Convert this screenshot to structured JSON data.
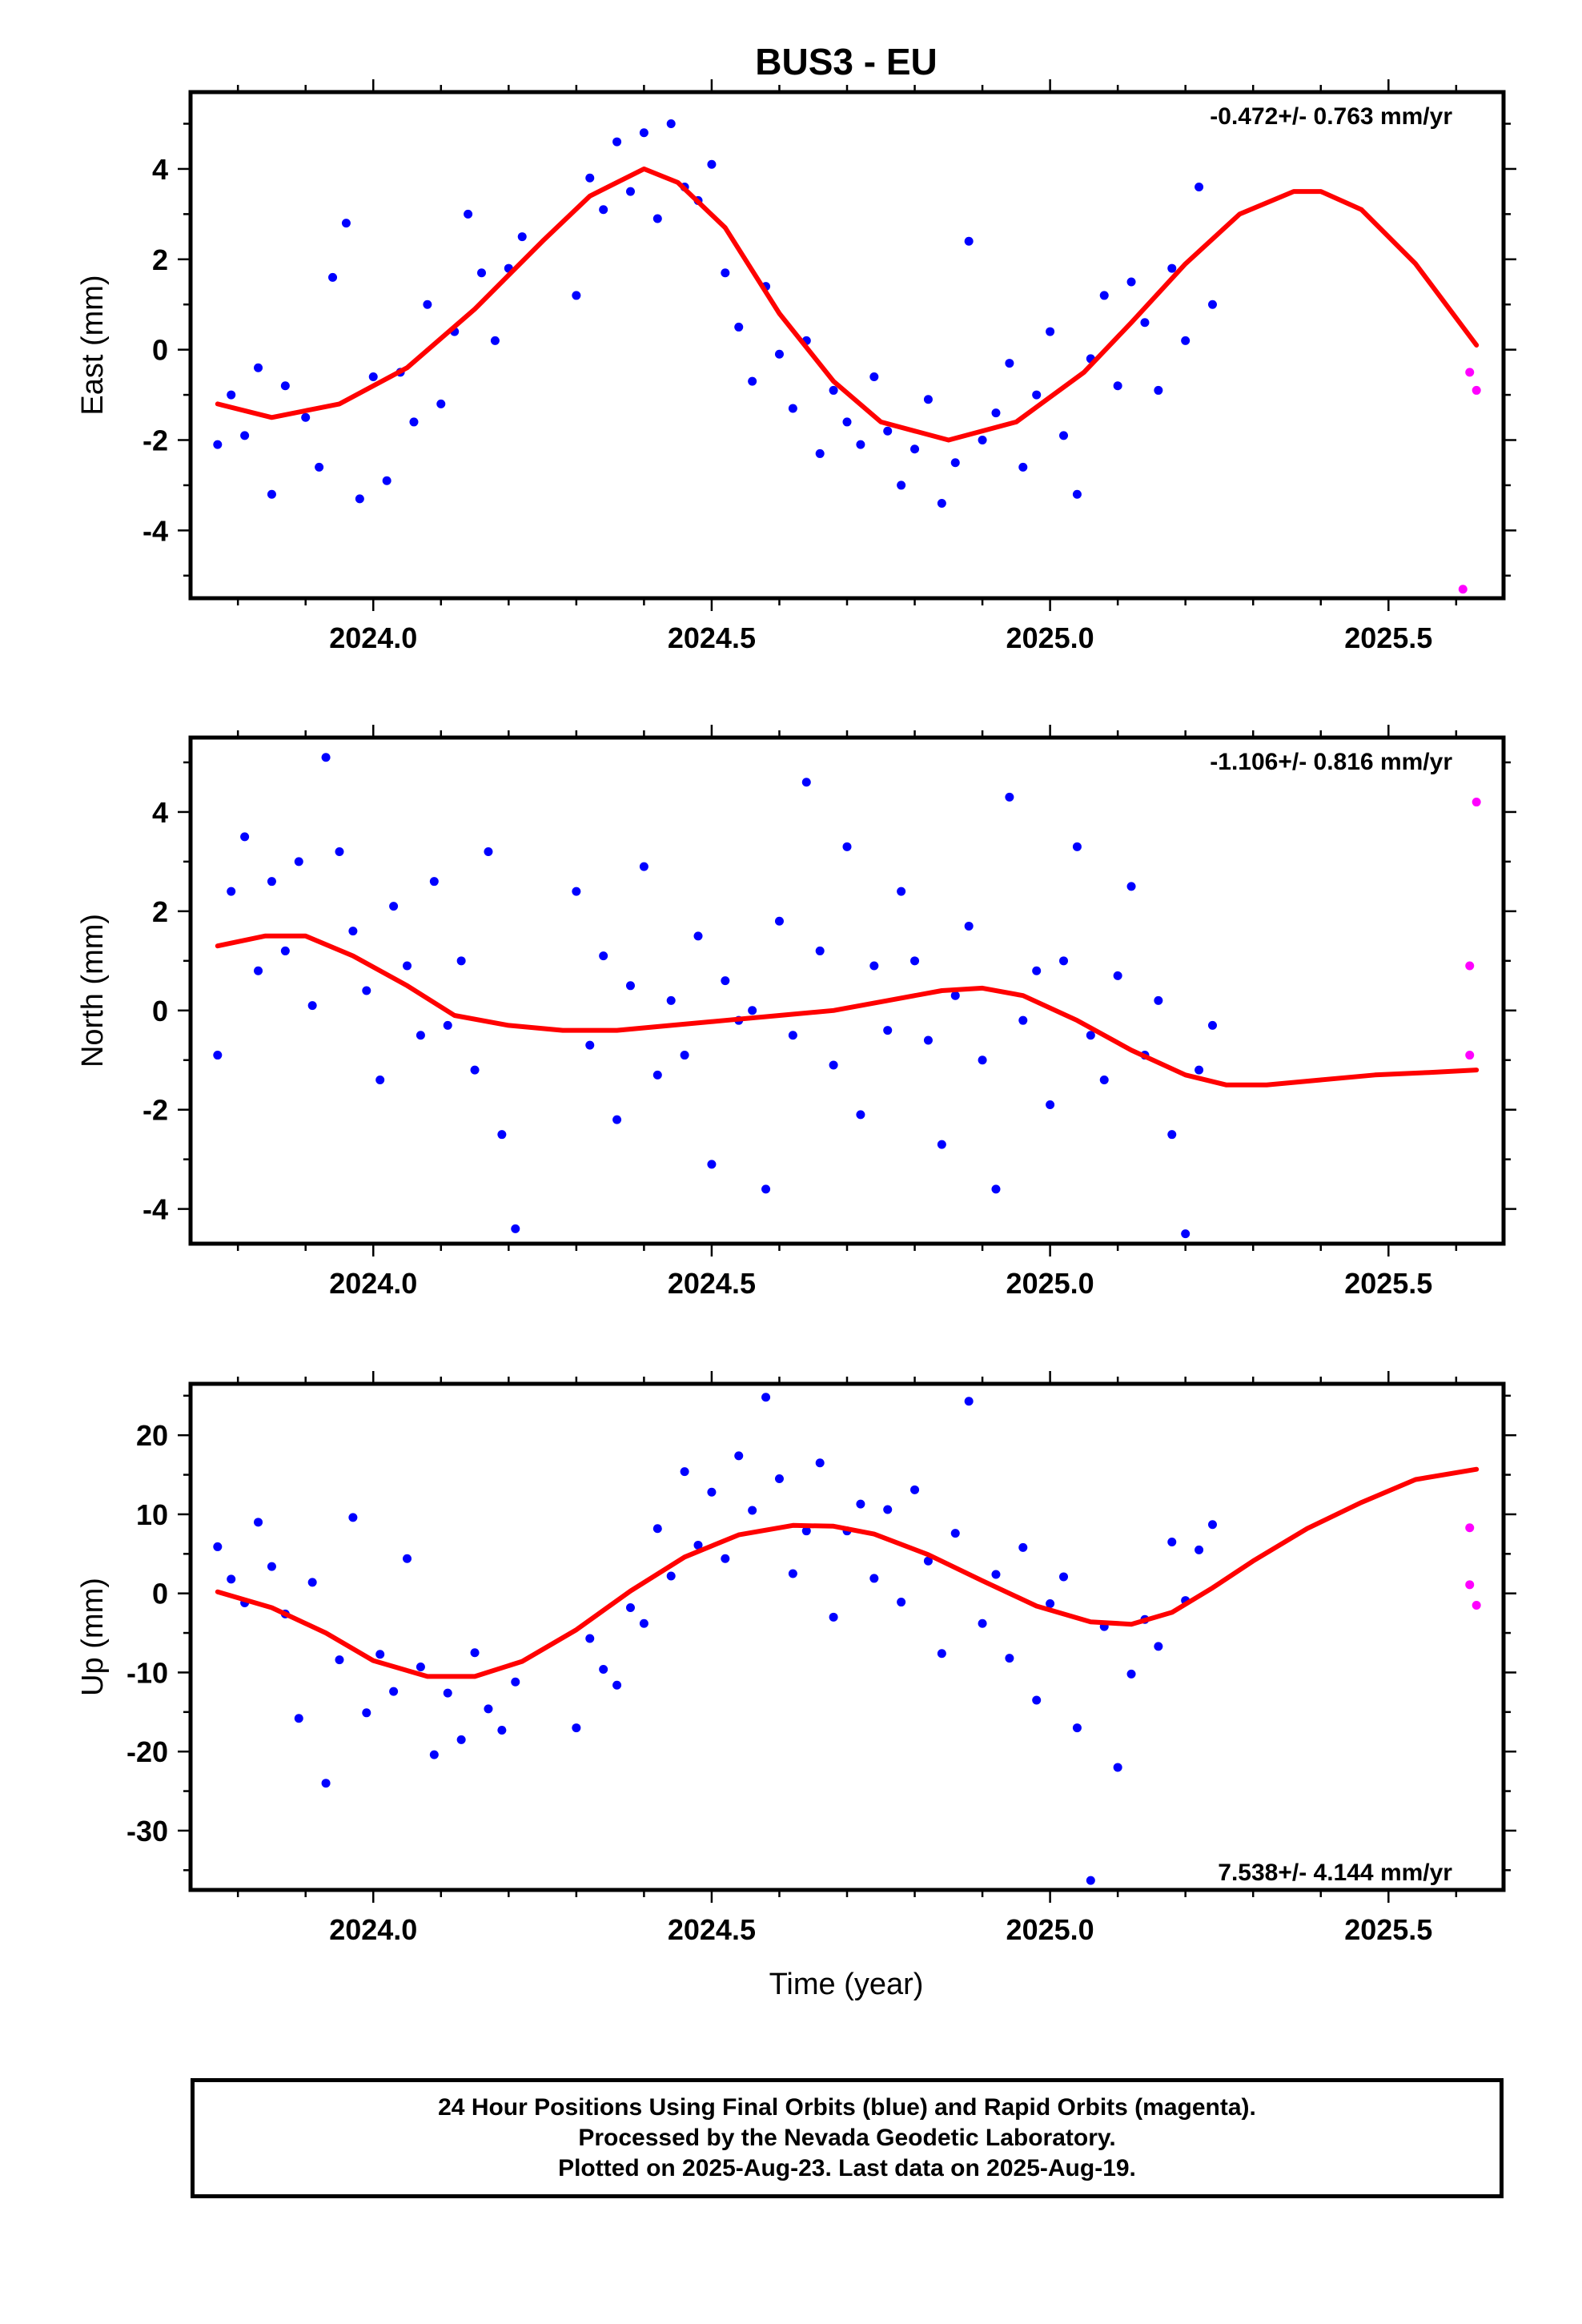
{
  "title": "BUS3 - EU",
  "xlabel": "Time (year)",
  "caption": {
    "line1": "24 Hour Positions Using Final Orbits (blue) and Rapid Orbits (magenta).",
    "line2": "Processed by the Nevada Geodetic Laboratory.",
    "line3": "Plotted on 2025-Aug-23. Last data on 2025-Aug-19."
  },
  "colors": {
    "final_orbits": "#0000ff",
    "rapid_orbits": "#ff00ff",
    "model_fit": "#ff0000"
  },
  "chart_data": [
    {
      "type": "scatter",
      "title": "BUS3 - EU",
      "ylabel": "East (mm)",
      "rate_label": "-0.472+/- 0.763 mm/yr",
      "xlim": [
        2023.73,
        2025.67
      ],
      "ylim": [
        -5.5,
        5.7
      ],
      "xticks": [
        2024.0,
        2024.5,
        2025.0,
        2025.5
      ],
      "xtick_labels": [
        "2024.0",
        "2024.5",
        "2025.0",
        "2025.5"
      ],
      "yticks": [
        -4,
        -2,
        0,
        2,
        4
      ],
      "yticks_minor": [
        -5,
        -3,
        -1,
        1,
        3,
        5
      ],
      "grid": false,
      "series": [
        {
          "name": "Final Orbits",
          "color": "#0000ff",
          "kind": "points",
          "x": [
            2023.77,
            2023.79,
            2023.81,
            2023.83,
            2023.85,
            2023.87,
            2023.9,
            2023.92,
            2023.94,
            2023.96,
            2023.98,
            2024.0,
            2024.02,
            2024.04,
            2024.06,
            2024.08,
            2024.1,
            2024.12,
            2024.14,
            2024.16,
            2024.18,
            2024.2,
            2024.22,
            2024.3,
            2024.32,
            2024.34,
            2024.36,
            2024.38,
            2024.4,
            2024.42,
            2024.44,
            2024.46,
            2024.48,
            2024.5,
            2024.52,
            2024.54,
            2024.56,
            2024.58,
            2024.6,
            2024.62,
            2024.64,
            2024.66,
            2024.68,
            2024.7,
            2024.72,
            2024.74,
            2024.76,
            2024.78,
            2024.8,
            2024.82,
            2024.84,
            2024.86,
            2024.88,
            2024.9,
            2024.92,
            2024.94,
            2024.96,
            2024.98,
            2025.0,
            2025.02,
            2025.04,
            2025.06,
            2025.08,
            2025.1,
            2025.12,
            2025.14,
            2025.16,
            2025.18,
            2025.2,
            2025.22,
            2025.24
          ],
          "y": [
            -2.1,
            -1.0,
            -1.9,
            -0.4,
            -3.2,
            -0.8,
            -1.5,
            -2.6,
            1.6,
            2.8,
            -3.3,
            -0.6,
            -2.9,
            -0.5,
            -1.6,
            1.0,
            -1.2,
            0.4,
            3.0,
            1.7,
            0.2,
            1.8,
            2.5,
            1.2,
            3.8,
            3.1,
            4.6,
            3.5,
            4.8,
            2.9,
            5.0,
            3.6,
            3.3,
            4.1,
            1.7,
            0.5,
            -0.7,
            1.4,
            -0.1,
            -1.3,
            0.2,
            -2.3,
            -0.9,
            -1.6,
            -2.1,
            -0.6,
            -1.8,
            -3.0,
            -2.2,
            -1.1,
            -3.4,
            -2.5,
            2.4,
            -2.0,
            -1.4,
            -0.3,
            -2.6,
            -1.0,
            0.4,
            -1.9,
            -3.2,
            -0.2,
            1.2,
            -0.8,
            1.5,
            0.6,
            -0.9,
            1.8,
            0.2,
            3.6,
            1.0
          ]
        },
        {
          "name": "Rapid Orbits",
          "color": "#ff00ff",
          "kind": "points",
          "x": [
            2025.62,
            2025.63,
            2025.61
          ],
          "y": [
            -0.5,
            -0.9,
            -5.3
          ]
        },
        {
          "name": "Model fit",
          "color": "#ff0000",
          "kind": "line",
          "x": [
            2023.77,
            2023.85,
            2023.95,
            2024.05,
            2024.15,
            2024.25,
            2024.32,
            2024.4,
            2024.45,
            2024.52,
            2024.6,
            2024.68,
            2024.75,
            2024.85,
            2024.95,
            2025.05,
            2025.12,
            2025.2,
            2025.28,
            2025.36,
            2025.4,
            2025.46,
            2025.54,
            2025.63
          ],
          "y": [
            -1.2,
            -1.5,
            -1.2,
            -0.4,
            0.9,
            2.4,
            3.4,
            4.0,
            3.7,
            2.7,
            0.8,
            -0.7,
            -1.6,
            -2.0,
            -1.6,
            -0.5,
            0.6,
            1.9,
            3.0,
            3.5,
            3.5,
            3.1,
            1.9,
            0.1
          ]
        }
      ]
    },
    {
      "type": "scatter",
      "ylabel": "North (mm)",
      "rate_label": "-1.106+/- 0.816 mm/yr",
      "xlim": [
        2023.73,
        2025.67
      ],
      "ylim": [
        -4.7,
        5.5
      ],
      "xticks": [
        2024.0,
        2024.5,
        2025.0,
        2025.5
      ],
      "xtick_labels": [
        "2024.0",
        "2024.5",
        "2025.0",
        "2025.5"
      ],
      "yticks": [
        -4,
        -2,
        0,
        2,
        4
      ],
      "yticks_minor": [
        -3,
        -1,
        1,
        3,
        5
      ],
      "grid": false,
      "series": [
        {
          "name": "Final Orbits",
          "color": "#0000ff",
          "kind": "points",
          "x": [
            2023.77,
            2023.79,
            2023.81,
            2023.83,
            2023.85,
            2023.87,
            2023.89,
            2023.91,
            2023.93,
            2023.95,
            2023.97,
            2023.99,
            2024.01,
            2024.03,
            2024.05,
            2024.07,
            2024.09,
            2024.11,
            2024.13,
            2024.15,
            2024.17,
            2024.19,
            2024.21,
            2024.3,
            2024.32,
            2024.34,
            2024.36,
            2024.38,
            2024.4,
            2024.42,
            2024.44,
            2024.46,
            2024.48,
            2024.5,
            2024.52,
            2024.54,
            2024.56,
            2024.58,
            2024.6,
            2024.62,
            2024.64,
            2024.66,
            2024.68,
            2024.7,
            2024.72,
            2024.74,
            2024.76,
            2024.78,
            2024.8,
            2024.82,
            2024.84,
            2024.86,
            2024.88,
            2024.9,
            2024.92,
            2024.94,
            2024.96,
            2024.98,
            2025.0,
            2025.02,
            2025.04,
            2025.06,
            2025.08,
            2025.1,
            2025.12,
            2025.14,
            2025.16,
            2025.18,
            2025.2,
            2025.22,
            2025.24
          ],
          "y": [
            -0.9,
            2.4,
            3.5,
            0.8,
            2.6,
            1.2,
            3.0,
            0.1,
            5.1,
            3.2,
            1.6,
            0.4,
            -1.4,
            2.1,
            0.9,
            -0.5,
            2.6,
            -0.3,
            1.0,
            -1.2,
            3.2,
            -2.5,
            -4.4,
            2.4,
            -0.7,
            1.1,
            -2.2,
            0.5,
            2.9,
            -1.3,
            0.2,
            -0.9,
            1.5,
            -3.1,
            0.6,
            -0.2,
            0.0,
            -3.6,
            1.8,
            -0.5,
            4.6,
            1.2,
            -1.1,
            3.3,
            -2.1,
            0.9,
            -0.4,
            2.4,
            1.0,
            -0.6,
            -2.7,
            0.3,
            1.7,
            -1.0,
            -3.6,
            4.3,
            -0.2,
            0.8,
            -1.9,
            1.0,
            3.3,
            -0.5,
            -1.4,
            0.7,
            2.5,
            -0.9,
            0.2,
            -2.5,
            -4.5,
            -1.2,
            -0.3
          ]
        },
        {
          "name": "Rapid Orbits",
          "color": "#ff00ff",
          "kind": "points",
          "x": [
            2025.63,
            2025.62,
            2025.62
          ],
          "y": [
            4.2,
            0.9,
            -0.9
          ]
        },
        {
          "name": "Model fit",
          "color": "#ff0000",
          "kind": "line",
          "x": [
            2023.77,
            2023.84,
            2023.9,
            2023.97,
            2024.05,
            2024.12,
            2024.2,
            2024.28,
            2024.36,
            2024.44,
            2024.52,
            2024.6,
            2024.68,
            2024.76,
            2024.84,
            2024.9,
            2024.96,
            2025.04,
            2025.12,
            2025.2,
            2025.26,
            2025.32,
            2025.4,
            2025.48,
            2025.56,
            2025.63
          ],
          "y": [
            1.3,
            1.5,
            1.5,
            1.1,
            0.5,
            -0.1,
            -0.3,
            -0.4,
            -0.4,
            -0.3,
            -0.2,
            -0.1,
            0.0,
            0.2,
            0.4,
            0.45,
            0.3,
            -0.2,
            -0.8,
            -1.3,
            -1.5,
            -1.5,
            -1.4,
            -1.3,
            -1.25,
            -1.2
          ]
        }
      ]
    },
    {
      "type": "scatter",
      "ylabel": "Up (mm)",
      "rate_label": "7.538+/- 4.144 mm/yr",
      "xlim": [
        2023.73,
        2025.67
      ],
      "ylim": [
        -37.5,
        26.5
      ],
      "xticks": [
        2024.0,
        2024.5,
        2025.0,
        2025.5
      ],
      "xtick_labels": [
        "2024.0",
        "2024.5",
        "2025.0",
        "2025.5"
      ],
      "yticks": [
        -30,
        -20,
        -10,
        0,
        10,
        20
      ],
      "yticks_minor": [
        -35,
        -25,
        -15,
        -5,
        5,
        15,
        25
      ],
      "grid": false,
      "series": [
        {
          "name": "Final Orbits",
          "color": "#0000ff",
          "kind": "points",
          "x": [
            2023.77,
            2023.79,
            2023.81,
            2023.83,
            2023.85,
            2023.87,
            2023.89,
            2023.91,
            2023.93,
            2023.95,
            2023.97,
            2023.99,
            2024.01,
            2024.03,
            2024.05,
            2024.07,
            2024.09,
            2024.11,
            2024.13,
            2024.15,
            2024.17,
            2024.19,
            2024.21,
            2024.3,
            2024.32,
            2024.34,
            2024.36,
            2024.38,
            2024.4,
            2024.42,
            2024.44,
            2024.46,
            2024.48,
            2024.5,
            2024.52,
            2024.54,
            2024.56,
            2024.58,
            2024.6,
            2024.62,
            2024.64,
            2024.66,
            2024.68,
            2024.7,
            2024.72,
            2024.74,
            2024.76,
            2024.78,
            2024.8,
            2024.82,
            2024.84,
            2024.86,
            2024.88,
            2024.9,
            2024.92,
            2024.94,
            2024.96,
            2024.98,
            2025.0,
            2025.02,
            2025.04,
            2025.06,
            2025.08,
            2025.1,
            2025.12,
            2025.14,
            2025.16,
            2025.18,
            2025.2,
            2025.22,
            2025.24
          ],
          "y": [
            5.9,
            1.8,
            -1.2,
            9.0,
            3.4,
            -2.6,
            -15.8,
            1.4,
            -24.0,
            -8.4,
            9.6,
            -15.1,
            -7.7,
            -12.4,
            4.4,
            -9.3,
            -20.4,
            -12.6,
            -18.5,
            -7.5,
            -14.6,
            -17.3,
            -11.2,
            -17.0,
            -5.7,
            -9.6,
            -11.6,
            -1.8,
            -3.8,
            8.2,
            2.2,
            15.4,
            6.1,
            12.8,
            4.4,
            17.4,
            10.5,
            24.8,
            14.5,
            2.5,
            7.9,
            16.5,
            -3.0,
            7.9,
            11.3,
            1.9,
            10.6,
            -1.1,
            13.1,
            4.1,
            -7.6,
            7.6,
            24.3,
            -3.8,
            2.4,
            -8.2,
            5.8,
            -13.5,
            -1.3,
            2.1,
            -17.0,
            -36.3,
            -4.2,
            -22.0,
            -10.2,
            -3.3,
            -6.7,
            6.5,
            -0.9,
            5.5,
            8.7
          ]
        },
        {
          "name": "Rapid Orbits",
          "color": "#ff00ff",
          "kind": "points",
          "x": [
            2025.62,
            2025.62,
            2025.63
          ],
          "y": [
            8.3,
            1.1,
            -1.5
          ]
        },
        {
          "name": "Model fit",
          "color": "#ff0000",
          "kind": "line",
          "x": [
            2023.77,
            2023.85,
            2023.93,
            2024.0,
            2024.08,
            2024.15,
            2024.22,
            2024.3,
            2024.38,
            2024.46,
            2024.54,
            2024.62,
            2024.68,
            2024.74,
            2024.82,
            2024.9,
            2024.98,
            2025.06,
            2025.12,
            2025.18,
            2025.24,
            2025.3,
            2025.38,
            2025.46,
            2025.54,
            2025.63
          ],
          "y": [
            0.2,
            -1.8,
            -5.0,
            -8.5,
            -10.5,
            -10.5,
            -8.6,
            -4.6,
            0.3,
            4.6,
            7.4,
            8.6,
            8.5,
            7.5,
            4.9,
            1.6,
            -1.6,
            -3.6,
            -3.9,
            -2.4,
            0.7,
            4.1,
            8.2,
            11.5,
            14.4,
            15.7
          ]
        }
      ]
    }
  ]
}
